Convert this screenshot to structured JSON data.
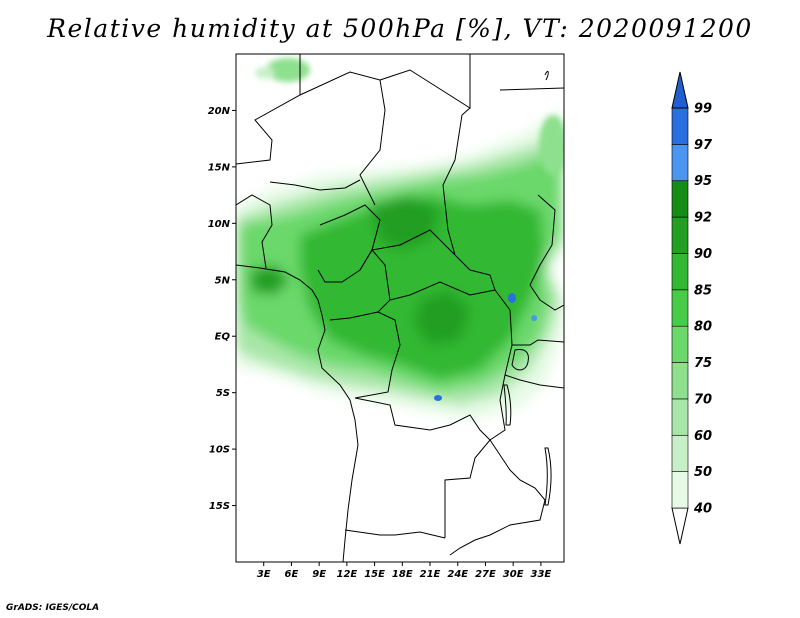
{
  "title": "Relative humidity at 500hPa [%], VT: 2020091200",
  "credit": "GrADS: IGES/COLA",
  "map": {
    "lon_range": [
      0,
      35.5
    ],
    "lat_range": [
      -20,
      25
    ],
    "lat_ticks": [
      {
        "value": 20,
        "label": "20N"
      },
      {
        "value": 15,
        "label": "15N"
      },
      {
        "value": 10,
        "label": "10N"
      },
      {
        "value": 5,
        "label": "5N"
      },
      {
        "value": 0,
        "label": "EQ"
      },
      {
        "value": -5,
        "label": "5S"
      },
      {
        "value": -10,
        "label": "10S"
      },
      {
        "value": -15,
        "label": "15S"
      }
    ],
    "lon_ticks": [
      {
        "value": 3,
        "label": "3E"
      },
      {
        "value": 6,
        "label": "6E"
      },
      {
        "value": 9,
        "label": "9E"
      },
      {
        "value": 12,
        "label": "12E"
      },
      {
        "value": 15,
        "label": "15E"
      },
      {
        "value": 18,
        "label": "18E"
      },
      {
        "value": 21,
        "label": "21E"
      },
      {
        "value": 24,
        "label": "24E"
      },
      {
        "value": 27,
        "label": "27E"
      },
      {
        "value": 30,
        "label": "30E"
      },
      {
        "value": 33,
        "label": "33E"
      }
    ]
  },
  "colorbar": {
    "levels": [
      {
        "label": "40",
        "color": "#e6fae6"
      },
      {
        "label": "50",
        "color": "#c8f0c8"
      },
      {
        "label": "60",
        "color": "#a9e6a9"
      },
      {
        "label": "70",
        "color": "#8ee08e"
      },
      {
        "label": "75",
        "color": "#6ad86a"
      },
      {
        "label": "80",
        "color": "#48cc48"
      },
      {
        "label": "85",
        "color": "#33b833"
      },
      {
        "label": "90",
        "color": "#239f23"
      },
      {
        "label": "92",
        "color": "#158c15"
      },
      {
        "label": "95",
        "color": "#4a96f0"
      },
      {
        "label": "97",
        "color": "#2a6fe0"
      },
      {
        "label": "99",
        "color": "#1f5fd0"
      }
    ],
    "bottom_cap_color": "#ffffff",
    "top_cap_color": "#1f5fd0"
  }
}
